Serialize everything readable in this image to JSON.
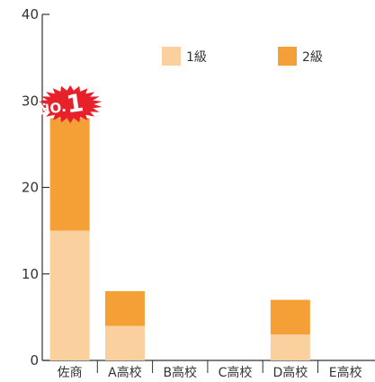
{
  "chart_data": {
    "type": "bar",
    "stacked": true,
    "categories": [
      "佐商",
      "A高校",
      "B高校",
      "C高校",
      "D高校",
      "E高校"
    ],
    "series": [
      {
        "name": "1級",
        "values": [
          15,
          4,
          0,
          0,
          3,
          0
        ],
        "color": "#FAD09E"
      },
      {
        "name": "2級",
        "values": [
          13,
          4,
          0,
          0,
          4,
          0
        ],
        "color": "#F5A037"
      }
    ],
    "ylim": [
      0,
      40
    ],
    "yticks": [
      0,
      10,
      20,
      30,
      40
    ],
    "grid": false,
    "legend_position": "top-right",
    "annotation": {
      "category": "佐商",
      "prefix": "NO.",
      "number": "1",
      "color": "#E8202A"
    }
  }
}
